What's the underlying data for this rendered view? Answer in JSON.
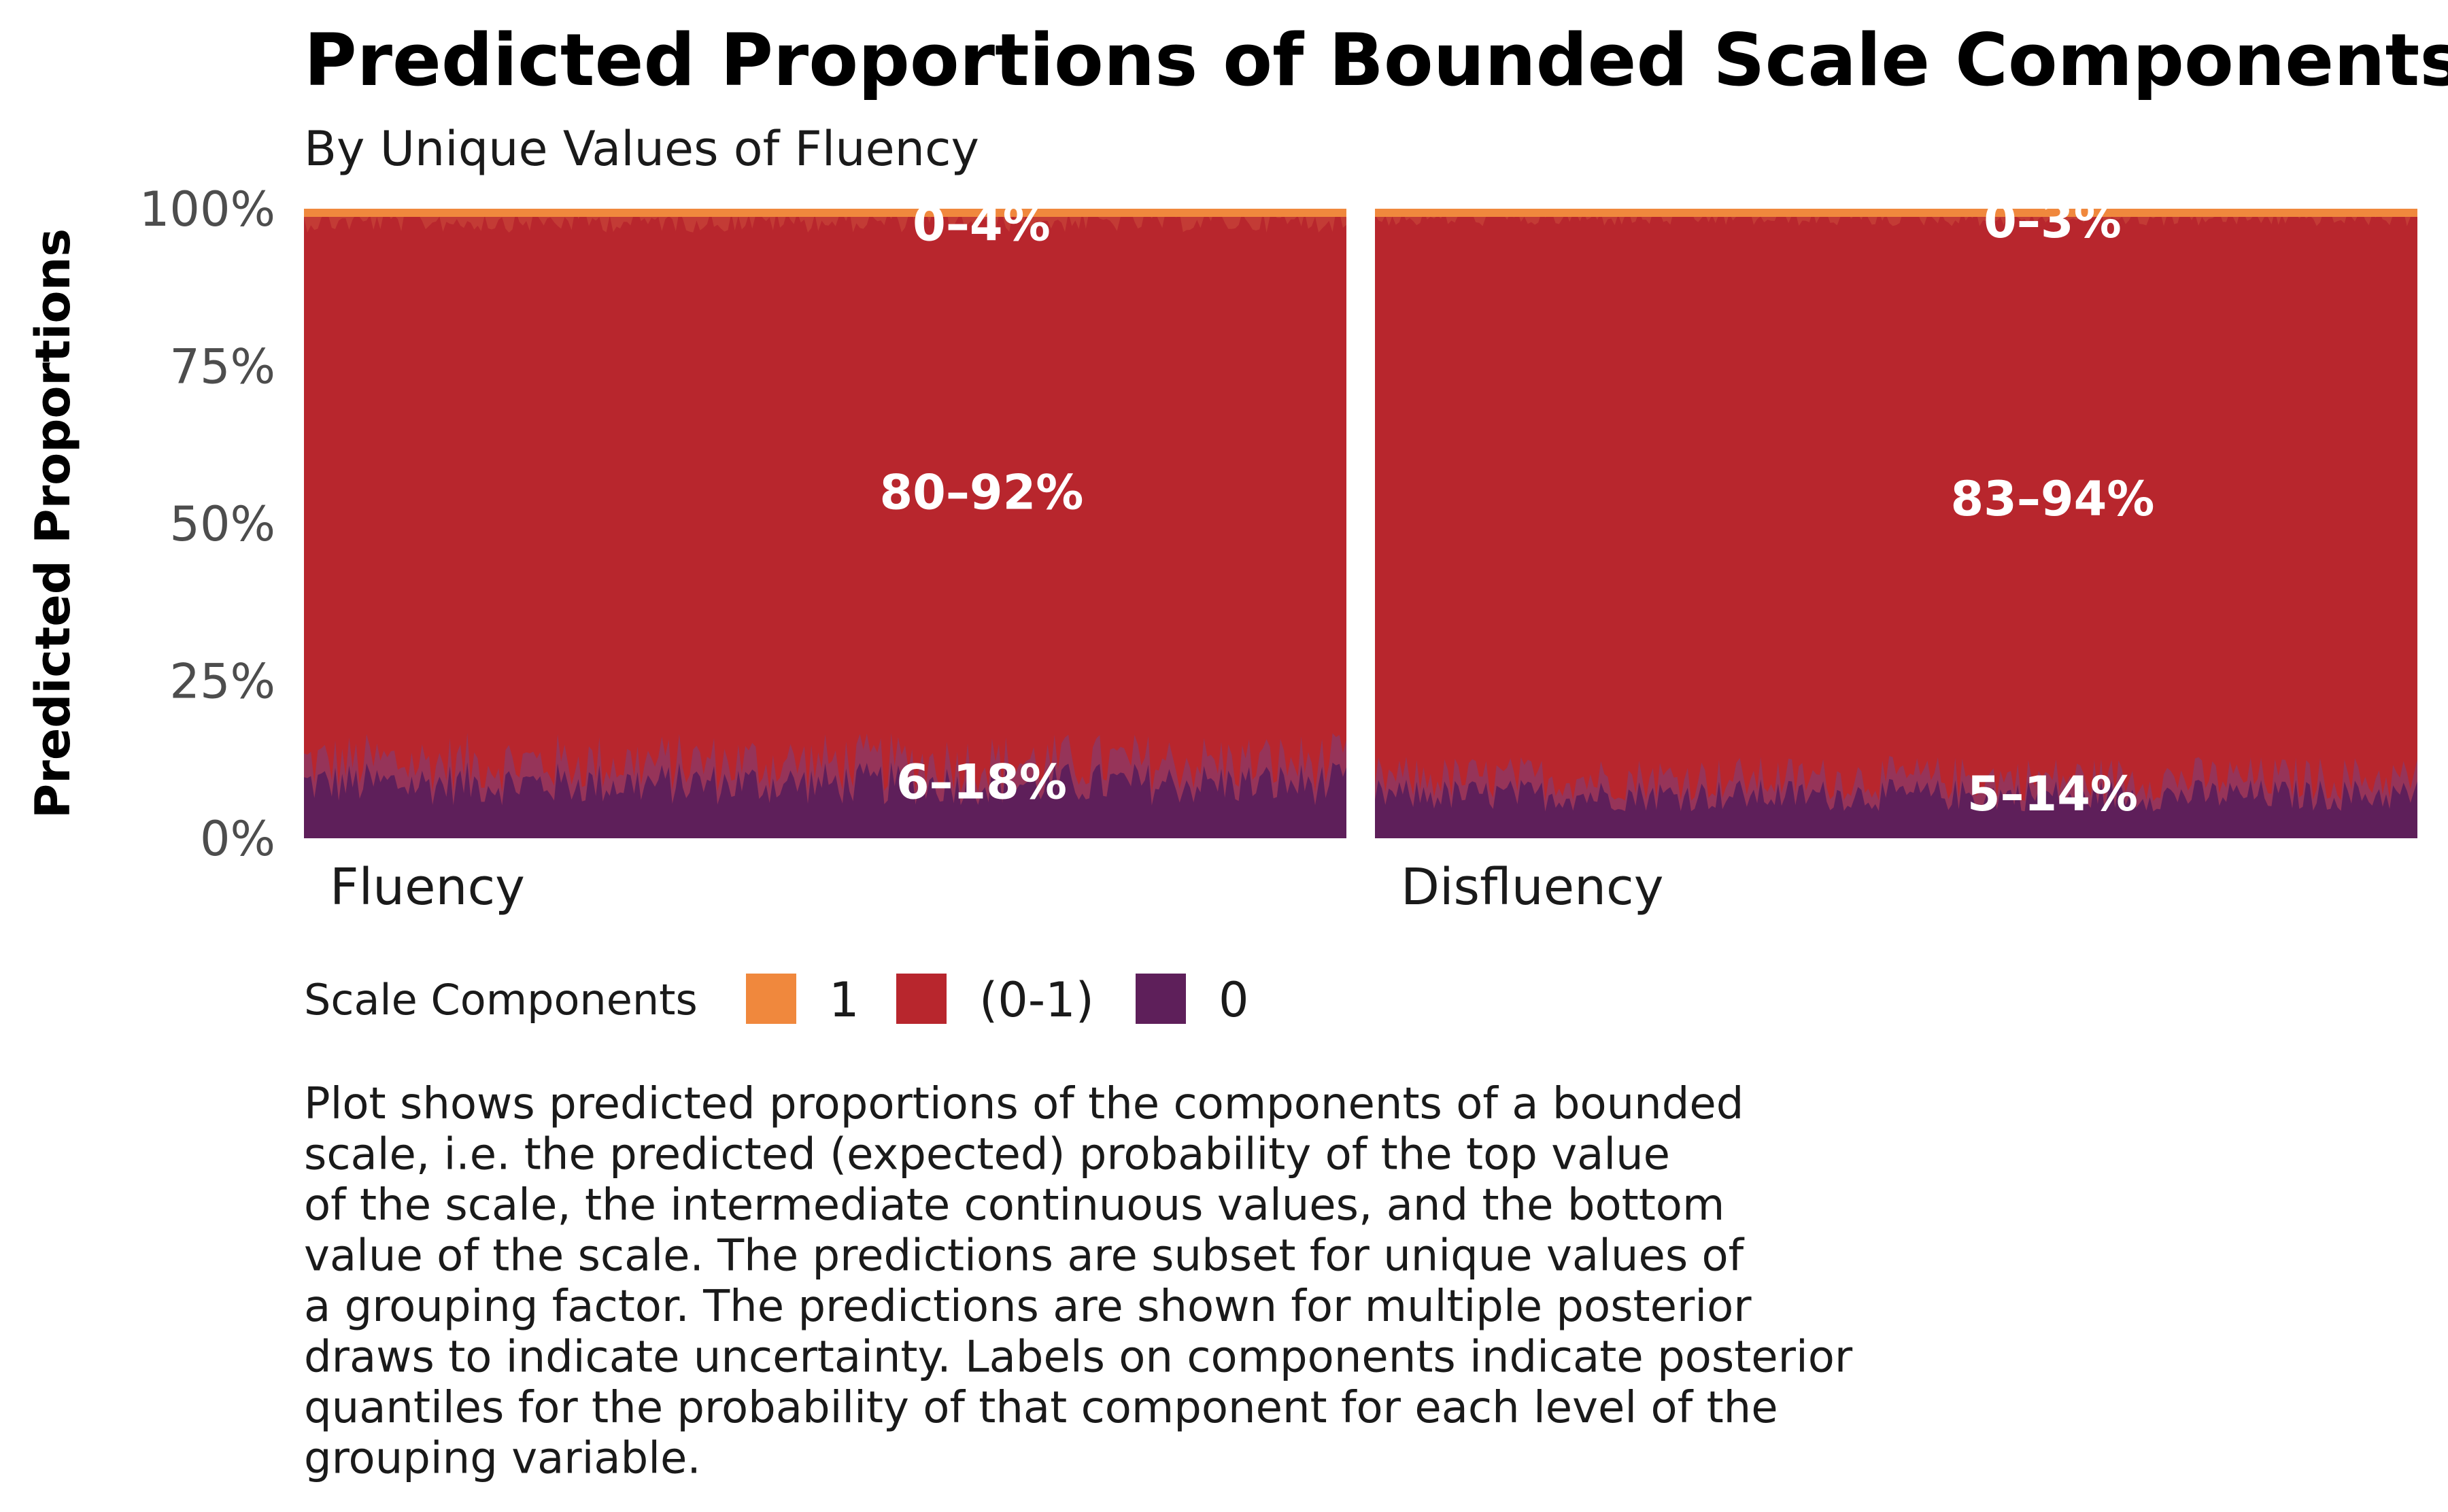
{
  "chart_data": {
    "type": "area",
    "title": "Predicted Proportions of Bounded Scale Components",
    "subtitle": "By Unique Values of Fluency",
    "ylabel": "Predicted Proportions",
    "xlabel": "",
    "ylim": [
      0,
      1
    ],
    "y_ticks": [
      {
        "value": 0,
        "label": "0%"
      },
      {
        "value": 0.25,
        "label": "25%"
      },
      {
        "value": 0.5,
        "label": "50%"
      },
      {
        "value": 0.75,
        "label": "75%"
      },
      {
        "value": 1,
        "label": "100%"
      }
    ],
    "grid": false,
    "legend": {
      "title": "Scale Components",
      "position": "bottom-left",
      "items": [
        {
          "label": "1",
          "color": "#F0883D"
        },
        {
          "label": "(0-1)",
          "color": "#B8262D"
        },
        {
          "label": "0",
          "color": "#5E1F5A"
        }
      ]
    },
    "panels": [
      {
        "name": "Fluency",
        "components": [
          {
            "component": "1",
            "color": "#F0883D",
            "label": "0–4%",
            "range": [
              0.0,
              0.04
            ]
          },
          {
            "component": "(0-1)",
            "color": "#B8262D",
            "label": "80–92%",
            "range": [
              0.8,
              0.92
            ]
          },
          {
            "component": "0",
            "color": "#5E1F5A",
            "label": "6–18%",
            "range": [
              0.06,
              0.18
            ]
          }
        ]
      },
      {
        "name": "Disfluency",
        "components": [
          {
            "component": "1",
            "color": "#F0883D",
            "label": "0–3%",
            "range": [
              0.0,
              0.03
            ]
          },
          {
            "component": "(0-1)",
            "color": "#B8262D",
            "label": "83–94%",
            "range": [
              0.83,
              0.94
            ]
          },
          {
            "component": "0",
            "color": "#5E1F5A",
            "label": "5–14%",
            "range": [
              0.05,
              0.14
            ]
          }
        ]
      }
    ],
    "caption_lines": [
      "Plot shows predicted proportions of the components of a bounded",
      "scale, i.e. the predicted (expected) probability of the top value",
      "of the scale, the intermediate continuous values, and the bottom",
      "value of the scale. The predictions are subset for unique values of",
      "a grouping factor. The predictions are shown for multiple posterior",
      "draws to indicate uncertainty. Labels on components indicate posterior",
      "quantiles for the probability of that component for each level of the",
      "grouping variable."
    ]
  }
}
